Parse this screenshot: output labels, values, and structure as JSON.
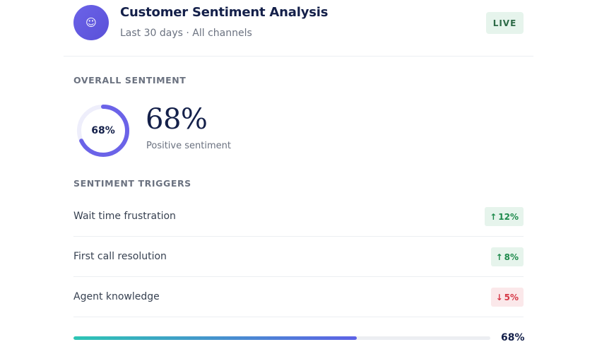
{
  "header": {
    "avatar_icon": "☺",
    "title": "Customer Sentiment Analysis",
    "subtitle": "Last 30 days · All channels",
    "status_badge": "LIVE"
  },
  "overall": {
    "section_label": "OVERALL SENTIMENT",
    "ring_label": "68%",
    "value": "68%",
    "value_fraction": 0.68,
    "caption": "Positive sentiment"
  },
  "triggers": {
    "section_label": "SENTIMENT TRIGGERS",
    "items": [
      {
        "label": "Wait time frustration",
        "direction": "up",
        "arrow": "↑",
        "change": "12%"
      },
      {
        "label": "First call resolution",
        "direction": "up",
        "arrow": "↑",
        "change": "8%"
      },
      {
        "label": "Agent knowledge",
        "direction": "down",
        "arrow": "↓",
        "change": "5%"
      }
    ]
  },
  "progress": {
    "value_fraction": 0.68,
    "label": "68%"
  },
  "colors": {
    "accent": "#5d62e6",
    "teal": "#2dc5b4",
    "positive": "#1e8a4c",
    "negative": "#d63846",
    "navy": "#14204a"
  }
}
